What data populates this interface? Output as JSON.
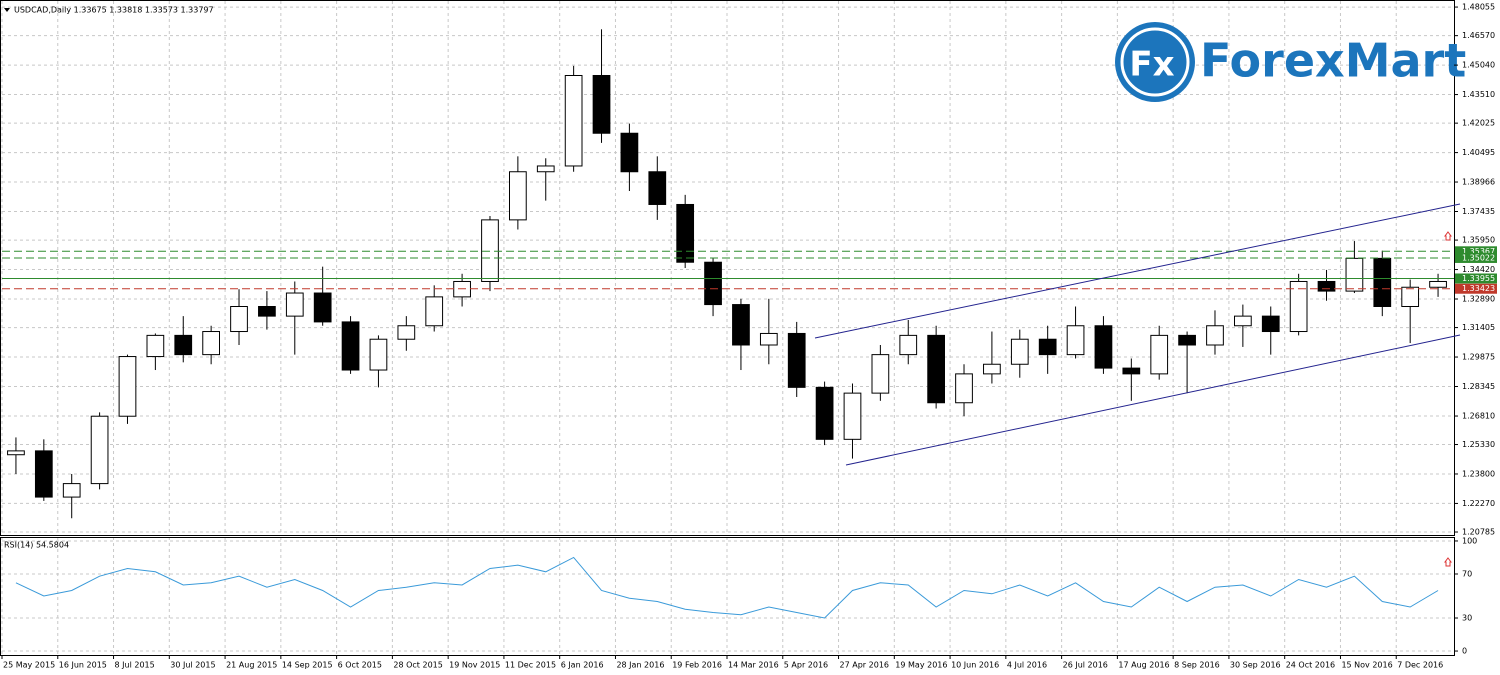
{
  "logo": {
    "mark": "Fx",
    "name": "ForexMart"
  },
  "chart_data": [
    {
      "type": "candlestick",
      "title": "USDCAD,Daily 1.33675 1.33818 1.33573 1.33797",
      "categories": [
        "25 May 2015",
        null,
        "16 Jun 2015",
        null,
        "8 Jul 2015",
        null,
        "30 Jul 2015",
        null,
        "21 Aug 2015",
        null,
        "14 Sep 2015",
        null,
        "6 Oct 2015",
        null,
        "28 Oct 2015",
        null,
        "19 Nov 2015",
        null,
        "11 Dec 2015",
        null,
        "6 Jan 2016",
        null,
        "28 Jan 2016",
        null,
        "19 Feb 2016",
        null,
        "14 Mar 2016",
        null,
        "5 Apr 2016",
        null,
        "27 Apr 2016",
        null,
        "19 May 2016",
        null,
        "10 Jun 2016",
        null,
        "4 Jul 2016",
        null,
        "26 Jul 2016",
        null,
        "17 Aug 2016",
        null,
        "8 Sep 2016",
        null,
        "30 Sep 2016",
        null,
        "24 Oct 2016",
        null,
        "15 Nov 2016",
        null,
        "7 Dec 2016",
        null
      ],
      "open": [
        1.248,
        1.25,
        1.226,
        1.233,
        1.268,
        1.299,
        1.31,
        1.3,
        1.312,
        1.325,
        1.32,
        1.332,
        1.317,
        1.292,
        1.308,
        1.315,
        1.33,
        1.338,
        1.37,
        1.395,
        1.398,
        1.445,
        1.415,
        1.395,
        1.378,
        1.348,
        1.326,
        1.305,
        1.311,
        1.283,
        1.256,
        1.28,
        1.3,
        1.31,
        1.275,
        1.29,
        1.295,
        1.308,
        1.3,
        1.315,
        1.293,
        1.29,
        1.31,
        1.305,
        1.315,
        1.32,
        1.312,
        1.338,
        1.333,
        1.35,
        1.325,
        1.335
      ],
      "high": [
        1.257,
        1.256,
        1.238,
        1.27,
        1.3,
        1.311,
        1.32,
        1.315,
        1.334,
        1.333,
        1.338,
        1.3457,
        1.32,
        1.31,
        1.32,
        1.336,
        1.342,
        1.372,
        1.403,
        1.402,
        1.45,
        1.469,
        1.42,
        1.403,
        1.383,
        1.35,
        1.329,
        1.329,
        1.317,
        1.286,
        1.285,
        1.305,
        1.318,
        1.315,
        1.295,
        1.312,
        1.313,
        1.315,
        1.325,
        1.32,
        1.298,
        1.315,
        1.312,
        1.323,
        1.326,
        1.325,
        1.342,
        1.344,
        1.359,
        1.354,
        1.339,
        1.342
      ],
      "low": [
        1.238,
        1.224,
        1.215,
        1.23,
        1.264,
        1.292,
        1.296,
        1.295,
        1.305,
        1.313,
        1.3,
        1.315,
        1.29,
        1.283,
        1.302,
        1.312,
        1.325,
        1.333,
        1.365,
        1.38,
        1.395,
        1.41,
        1.385,
        1.37,
        1.345,
        1.32,
        1.292,
        1.295,
        1.278,
        1.253,
        1.246,
        1.276,
        1.295,
        1.272,
        1.268,
        1.285,
        1.288,
        1.29,
        1.298,
        1.29,
        1.276,
        1.287,
        1.28,
        1.3,
        1.304,
        1.3,
        1.31,
        1.328,
        1.332,
        1.32,
        1.306,
        1.33
      ],
      "close": [
        1.25,
        1.226,
        1.233,
        1.268,
        1.299,
        1.31,
        1.3,
        1.312,
        1.325,
        1.32,
        1.332,
        1.317,
        1.292,
        1.308,
        1.315,
        1.33,
        1.338,
        1.37,
        1.395,
        1.398,
        1.445,
        1.415,
        1.395,
        1.378,
        1.348,
        1.326,
        1.305,
        1.311,
        1.283,
        1.256,
        1.28,
        1.3,
        1.31,
        1.275,
        1.29,
        1.295,
        1.308,
        1.3,
        1.315,
        1.293,
        1.29,
        1.31,
        1.305,
        1.315,
        1.32,
        1.312,
        1.338,
        1.333,
        1.35,
        1.325,
        1.335,
        1.338
      ],
      "ylim": [
        1.2063,
        1.4837
      ],
      "yticks": [
        1.48055,
        {
          "value": 1.4657,
          "label": "1.46570"
        },
        {
          "value": 1.4504,
          "label": "1.45040"
        },
        {
          "value": 1.4351,
          "label": "1.43510"
        },
        1.42025,
        1.40495,
        1.38966,
        1.37435,
        {
          "value": 1.3595,
          "label": "1.35950"
        },
        {
          "value": 1.3442,
          "label": "1.34420"
        },
        {
          "value": 1.3289,
          "label": "1.32890"
        },
        1.31405,
        1.29875,
        1.28345,
        {
          "value": 1.2681,
          "label": "1.26810"
        },
        {
          "value": 1.2533,
          "label": "1.25330"
        },
        {
          "value": 1.238,
          "label": "1.23800"
        },
        {
          "value": 1.2227,
          "label": "1.22270"
        },
        1.20785
      ],
      "levels": [
        {
          "value": 1.35367,
          "color": "#2e8b2e",
          "dashed": true
        },
        {
          "value": 1.35022,
          "color": "#2e8b2e",
          "dashed": true
        },
        {
          "value": 1.33955,
          "color": "#2e8b2e",
          "dashed": false
        },
        {
          "value": 1.33423,
          "color": "#c0392b",
          "dashed": true
        }
      ],
      "grid": true
    },
    {
      "type": "line",
      "title": "RSI(14) 54.5804",
      "color": "#3a9ad9",
      "values": [
        62,
        50,
        55,
        68,
        75,
        72,
        60,
        62,
        68,
        58,
        65,
        55,
        40,
        55,
        58,
        62,
        60,
        75,
        78,
        72,
        85,
        55,
        48,
        45,
        38,
        35,
        33,
        40,
        35,
        30,
        55,
        62,
        60,
        40,
        55,
        52,
        60,
        50,
        62,
        45,
        40,
        58,
        45,
        58,
        60,
        50,
        65,
        58,
        68,
        45,
        40,
        55
      ],
      "ylim": [
        -3.6,
        103.6
      ],
      "yticks": [
        0,
        30,
        70,
        100
      ],
      "grid": true
    }
  ]
}
